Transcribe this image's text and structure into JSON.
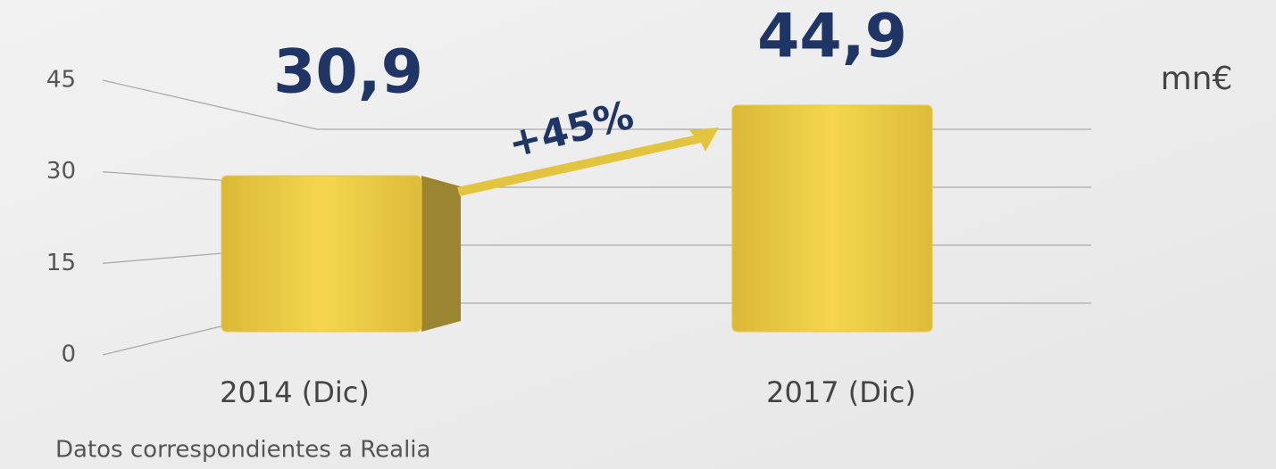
{
  "chart_data": {
    "type": "bar",
    "categories": [
      "2014 (Dic)",
      "2017 (Dic)"
    ],
    "values": [
      30.9,
      44.9
    ],
    "value_labels": [
      "30,9",
      "44,9"
    ],
    "color": "#e8c840",
    "ylim": [
      0,
      45
    ],
    "yticks": [
      0,
      15,
      30,
      45
    ],
    "grid": true,
    "unit": "mn€",
    "annotation": "+45%",
    "note": "Datos correspondientes a Realia"
  }
}
